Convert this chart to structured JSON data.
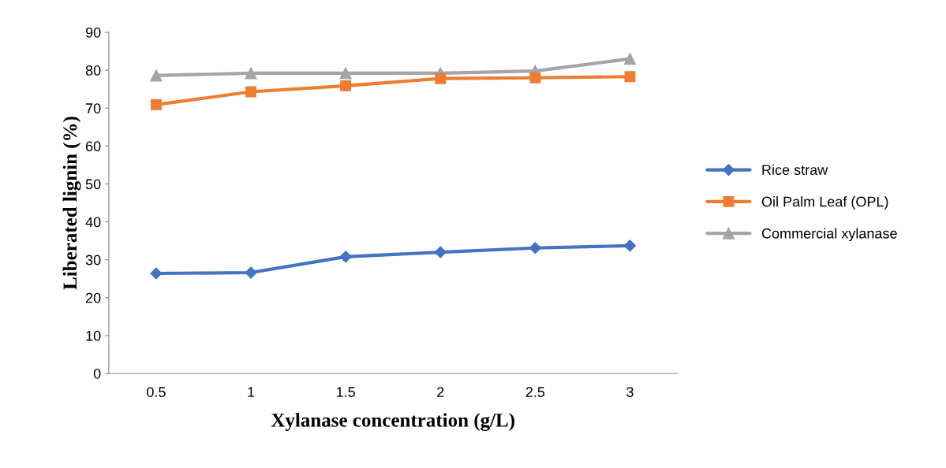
{
  "chart_data": {
    "type": "line",
    "xlabel": "Xylanase concentration (g/L)",
    "ylabel": "Liberated lignin (%)",
    "categories": [
      "0.5",
      "1",
      "1.5",
      "2",
      "2.5",
      "3"
    ],
    "ylim": [
      0,
      90
    ],
    "yticks": [
      0,
      10,
      20,
      30,
      40,
      50,
      60,
      70,
      80,
      90
    ],
    "grid": false,
    "legend": "right",
    "line_style": "solid",
    "series": [
      {
        "name": "Rice straw",
        "color": "#4472c4",
        "marker": "diamond",
        "values": [
          26.4,
          26.6,
          30.8,
          32.0,
          33.1,
          33.7
        ]
      },
      {
        "name": "Oil Palm Leaf (OPL)",
        "color": "#ed7d31",
        "marker": "square",
        "values": [
          70.9,
          74.3,
          75.9,
          77.8,
          78.0,
          78.3
        ]
      },
      {
        "name": "Commercial xylanase",
        "color": "#a5a5a5",
        "marker": "triangle",
        "values": [
          78.6,
          79.2,
          79.2,
          79.2,
          79.8,
          83.0
        ]
      }
    ]
  }
}
